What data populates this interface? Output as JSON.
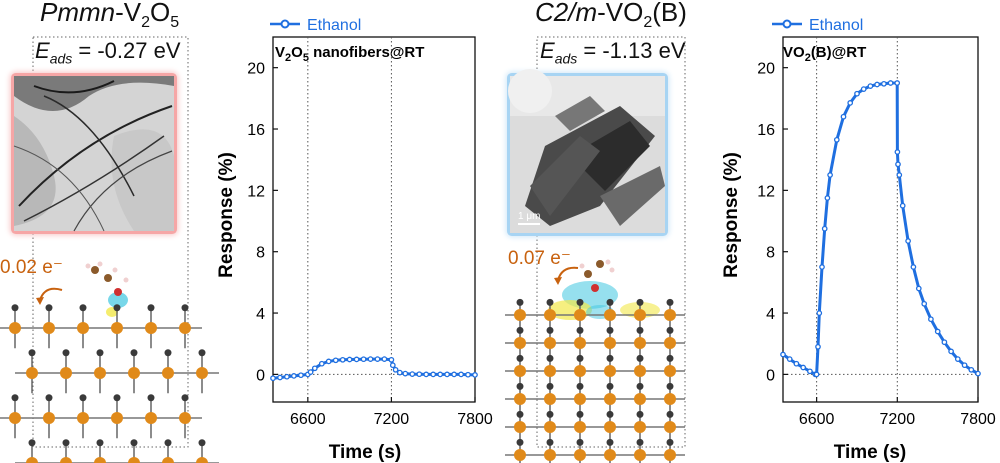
{
  "left_material": {
    "title_prefix": "Pmmn",
    "title_suffix": "-V",
    "title_sub1": "2",
    "title_mid": "O",
    "title_sub2": "5",
    "eads_label": "E",
    "eads_sub": "ads",
    "eads_value": " = -0.27 eV",
    "charge": "0.02 e⁻"
  },
  "right_material": {
    "title_prefix": "C2/m",
    "title_suffix": "-VO",
    "title_sub1": "2",
    "title_mid": "(B)",
    "eads_label": "E",
    "eads_sub": "ads",
    "eads_value": " = -1.13 eV",
    "charge": "0.07 e⁻",
    "scale_bar": "1 μm"
  },
  "colors": {
    "series": "#1f6fe0",
    "atom_v": "#e08a1a",
    "atom_o": "#3a3a3a",
    "charge_text": "#c8620f",
    "tem_red_glow": "#f6a6a6",
    "tem_blue_glow": "#a7d4f3",
    "density_cyan": "#3fc6e0",
    "density_yellow": "#f2e84a"
  },
  "chart_data": [
    {
      "type": "line",
      "title": "V2O5 nanofibers@RT",
      "title_parts": [
        "V",
        "2",
        "O",
        "5",
        " nanofibers@RT"
      ],
      "legend": "Ethanol",
      "xlabel": "Time (s)",
      "ylabel": "Response (%)",
      "xlim": [
        6350,
        7800
      ],
      "ylim": [
        -1.8,
        22
      ],
      "xticks": [
        "6600",
        "7200",
        "7800"
      ],
      "xtick_values": [
        6600,
        7200,
        7800
      ],
      "yticks": [
        "0",
        "4",
        "8",
        "12",
        "16",
        "20"
      ],
      "ytick_values": [
        0,
        4,
        8,
        12,
        16,
        20
      ],
      "vlines": [
        6600,
        7200
      ],
      "hline": 0,
      "series": [
        {
          "name": "Ethanol",
          "x": [
            6350,
            6400,
            6450,
            6500,
            6550,
            6600,
            6620,
            6650,
            6700,
            6750,
            6800,
            6850,
            6900,
            6950,
            7000,
            7050,
            7100,
            7150,
            7200,
            7210,
            7230,
            7260,
            7300,
            7350,
            7400,
            7450,
            7500,
            7550,
            7600,
            7650,
            7700,
            7750,
            7800
          ],
          "y": [
            -0.25,
            -0.2,
            -0.15,
            -0.1,
            -0.05,
            0.0,
            0.15,
            0.4,
            0.7,
            0.85,
            0.92,
            0.95,
            0.97,
            0.98,
            0.99,
            1.0,
            1.0,
            1.0,
            0.95,
            0.6,
            0.3,
            0.12,
            0.05,
            0.02,
            0.01,
            0.0,
            0.0,
            0.0,
            0.0,
            0.0,
            0.0,
            -0.02,
            -0.03
          ]
        }
      ]
    },
    {
      "type": "line",
      "title": "VO2(B)@RT",
      "title_parts": [
        "VO",
        "2",
        "(B)@RT"
      ],
      "legend": "Ethanol",
      "xlabel": "Time (s)",
      "ylabel": "Response (%)",
      "xlim": [
        6350,
        7800
      ],
      "ylim": [
        -1.8,
        22
      ],
      "xticks": [
        "6600",
        "7200",
        "7800"
      ],
      "xtick_values": [
        6600,
        7200,
        7800
      ],
      "yticks": [
        "0",
        "4",
        "8",
        "12",
        "16",
        "20"
      ],
      "ytick_values": [
        0,
        4,
        8,
        12,
        16,
        20
      ],
      "vlines": [
        6600,
        7200
      ],
      "hline": 0,
      "series": [
        {
          "name": "Ethanol",
          "x": [
            6350,
            6400,
            6450,
            6500,
            6550,
            6590,
            6600,
            6610,
            6620,
            6640,
            6660,
            6680,
            6700,
            6750,
            6800,
            6850,
            6900,
            6950,
            7000,
            7050,
            7100,
            7150,
            7199,
            7201,
            7205,
            7215,
            7240,
            7280,
            7320,
            7360,
            7400,
            7450,
            7500,
            7550,
            7600,
            7650,
            7700,
            7750,
            7800
          ],
          "y": [
            1.3,
            1.0,
            0.7,
            0.45,
            0.2,
            0.0,
            0.0,
            1.8,
            4.0,
            7.0,
            9.5,
            11.5,
            13.0,
            15.3,
            16.8,
            17.7,
            18.3,
            18.6,
            18.8,
            18.9,
            18.95,
            19.0,
            19.0,
            14.5,
            13.7,
            13.0,
            11.0,
            8.7,
            7.0,
            5.6,
            4.6,
            3.6,
            2.8,
            2.1,
            1.5,
            1.0,
            0.6,
            0.3,
            0.05
          ]
        }
      ]
    }
  ]
}
